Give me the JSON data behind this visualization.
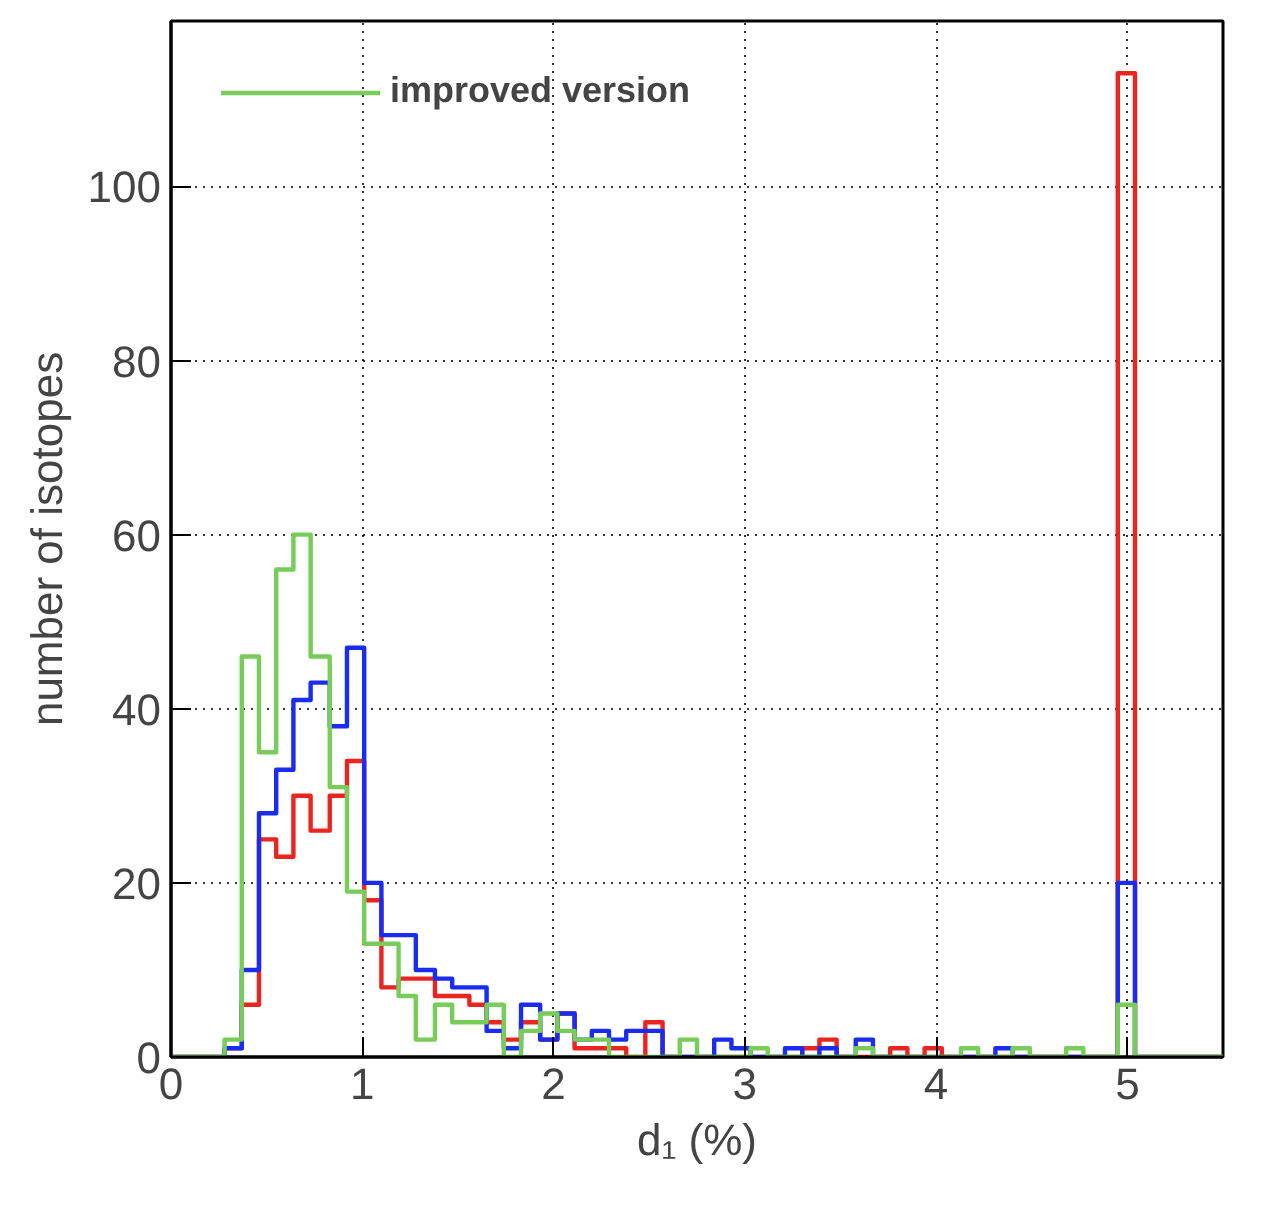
{
  "chart_data": {
    "type": "histogram",
    "xlabel": "d₁ (%)",
    "ylabel": "number of isotopes",
    "bins": [
      0,
      0.09,
      0.18,
      0.28,
      0.37,
      0.46,
      0.55,
      0.64,
      0.73,
      0.83,
      0.92,
      1.01,
      1.1,
      1.19,
      1.28,
      1.38,
      1.47,
      1.56,
      1.65,
      1.74,
      1.83,
      1.93,
      2.02,
      2.11,
      2.2,
      2.29,
      2.38,
      2.48,
      2.57,
      2.66,
      2.75,
      2.84,
      2.93,
      3.03,
      3.12,
      3.21,
      3.3,
      3.39,
      3.48,
      3.58,
      3.67,
      3.76,
      3.85,
      3.94,
      4.03,
      4.13,
      4.22,
      4.31,
      4.4,
      4.49,
      4.58,
      4.68,
      4.77,
      4.86,
      4.95,
      5.04,
      5.13,
      5.23,
      5.32,
      5.41,
      5.5
    ],
    "series": [
      {
        "color": "#e8261f",
        "values": [
          0,
          0,
          0,
          1,
          6,
          25,
          23,
          30,
          26,
          30,
          34,
          18,
          8,
          9,
          9,
          7,
          7,
          6,
          4,
          2,
          4,
          2,
          5,
          1,
          1,
          1,
          0,
          4,
          0,
          0,
          0,
          0,
          0,
          0,
          0,
          0,
          1,
          2,
          0,
          0,
          0,
          1,
          0,
          1,
          0,
          0,
          0,
          0,
          0,
          0,
          0,
          0,
          0,
          0,
          113,
          0,
          0,
          0,
          0,
          0
        ]
      },
      {
        "color": "#1a2cf0",
        "values": [
          0,
          0,
          0,
          1,
          10,
          28,
          33,
          41,
          43,
          38,
          47,
          20,
          14,
          14,
          10,
          9,
          8,
          8,
          3,
          1,
          6,
          2,
          5,
          2,
          3,
          2,
          3,
          3,
          0,
          0,
          0,
          2,
          1,
          0,
          0,
          1,
          0,
          1,
          0,
          2,
          0,
          0,
          0,
          0,
          0,
          0,
          0,
          1,
          0,
          0,
          0,
          0,
          0,
          0,
          20,
          0,
          0,
          0,
          0,
          0
        ]
      },
      {
        "name": "improved version",
        "color": "#77cc5a",
        "values": [
          0,
          0,
          0,
          2,
          46,
          35,
          56,
          60,
          46,
          31,
          19,
          13,
          13,
          7,
          2,
          6,
          4,
          4,
          6,
          0,
          3,
          5,
          3,
          2,
          2,
          0,
          0,
          0,
          0,
          2,
          0,
          0,
          0,
          1,
          0,
          0,
          0,
          0,
          0,
          1,
          0,
          0,
          0,
          0,
          0,
          1,
          0,
          0,
          1,
          0,
          0,
          1,
          0,
          0,
          6,
          0,
          0,
          0,
          0,
          0
        ]
      }
    ],
    "xlim": [
      0,
      5.5
    ],
    "ylim": [
      0,
      119
    ],
    "xticks": [
      0,
      1,
      2,
      3,
      4,
      5
    ],
    "yticks": [
      0,
      20,
      40,
      60,
      80,
      100
    ],
    "grid": true,
    "legend": "top left"
  }
}
